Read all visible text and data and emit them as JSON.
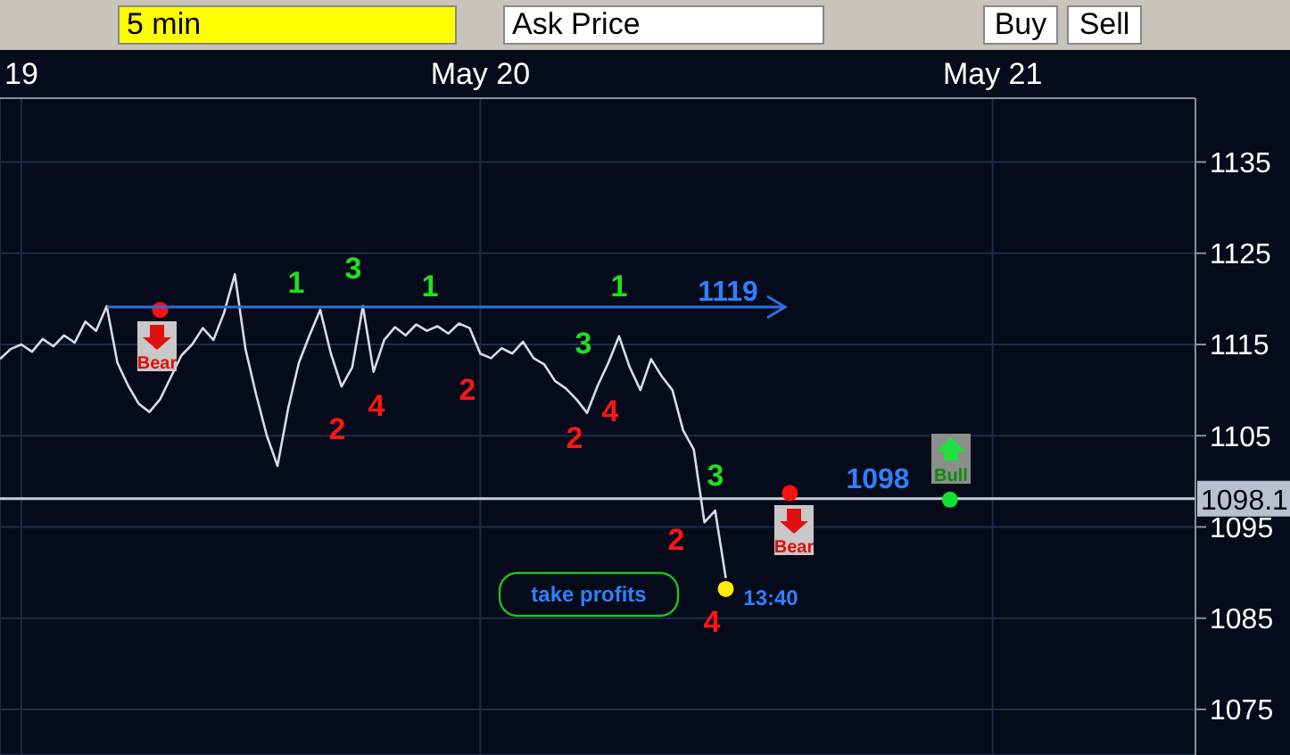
{
  "chart_data": {
    "type": "line",
    "categories": [
      null,
      null,
      "19",
      null,
      null,
      null,
      null,
      null,
      null,
      null,
      null,
      null,
      null,
      null,
      null,
      null,
      null,
      null,
      null,
      null,
      null,
      null,
      null,
      null,
      null,
      null,
      null,
      null,
      null,
      null,
      null,
      null,
      null,
      null,
      null,
      null,
      null,
      null,
      null,
      null,
      null,
      null,
      null,
      null,
      null,
      "May 20",
      null,
      null,
      null,
      null,
      null,
      null,
      null,
      null,
      null,
      null,
      null,
      null,
      null,
      null,
      null,
      null,
      null,
      null,
      null,
      null,
      null,
      null,
      null,
      null,
      null,
      null,
      null,
      null,
      null,
      null,
      null,
      null,
      null,
      null,
      null,
      null,
      null,
      null,
      null,
      null,
      null,
      null,
      null,
      null,
      null,
      null,
      null,
      "May 21",
      null,
      null,
      null,
      null,
      null,
      null,
      null,
      null,
      null,
      null,
      null,
      null,
      null,
      null,
      null,
      null,
      null,
      null,
      null
    ],
    "series": [
      {
        "color": "#d8dce8",
        "values": [
          1113.4,
          1114.5,
          1115.0,
          1114.2,
          1115.6,
          1114.8,
          1116.0,
          1115.2,
          1117.5,
          1116.5,
          1119.2,
          1113.0,
          1110.5,
          1108.5,
          1107.6,
          1109.0,
          1111.4,
          1113.8,
          1115.0,
          1116.8,
          1115.5,
          1118.5,
          1122.7,
          1114.5,
          1109.5,
          1105.0,
          1101.7,
          1108.0,
          1113.0,
          1116.0,
          1118.8,
          1114.0,
          1110.4,
          1112.5,
          1119.2,
          1112.0,
          1115.5,
          1116.9,
          1116.0,
          1117.2,
          1116.5,
          1117.0,
          1116.2,
          1117.3,
          1116.8,
          1114.0,
          1113.5,
          1114.6,
          1114.0,
          1115.3,
          1113.5,
          1112.8,
          1111.0,
          1110.2,
          1109.0,
          1107.5,
          1110.5,
          1113.0,
          1115.9,
          1112.5,
          1110.0,
          1113.4,
          1111.5,
          1110.0,
          1105.6,
          1103.5,
          1095.5,
          1096.8,
          1089.4,
          null,
          null,
          null,
          null,
          null,
          null,
          null,
          null,
          null,
          null,
          null,
          null,
          null,
          null,
          null,
          null,
          null,
          null,
          null,
          null,
          null,
          null,
          null,
          null,
          null,
          null,
          null,
          null,
          null,
          null,
          null,
          null,
          null,
          null,
          null,
          null,
          null,
          null,
          null,
          null,
          null,
          null,
          null,
          null
        ]
      },
      {
        "type": "scatter",
        "colors": [
          null,
          null,
          null,
          null,
          null,
          null,
          null,
          null,
          null,
          null,
          null,
          null,
          null,
          null,
          null,
          "#ff1010",
          null,
          null,
          null,
          null,
          null,
          null,
          null,
          null,
          null,
          null,
          null,
          null,
          null,
          null,
          null,
          null,
          null,
          null,
          null,
          null,
          null,
          null,
          null,
          null,
          null,
          null,
          null,
          null,
          null,
          null,
          null,
          null,
          null,
          null,
          null,
          null,
          null,
          null,
          null,
          null,
          null,
          null,
          null,
          null,
          null,
          null,
          null,
          null,
          null,
          null,
          null,
          null,
          "#ffee00",
          null,
          null,
          null,
          null,
          null,
          "#ff1010",
          null,
          null,
          null,
          null,
          null,
          null,
          null,
          null,
          null,
          null,
          null,
          null,
          null,
          null,
          "#10e030",
          null,
          null,
          null,
          null,
          null,
          null,
          null,
          null,
          null,
          null,
          null,
          null,
          null,
          null,
          null,
          null,
          null,
          null,
          null,
          null,
          null,
          null,
          null
        ],
        "values": [
          null,
          null,
          null,
          null,
          null,
          null,
          null,
          null,
          null,
          null,
          null,
          null,
          null,
          null,
          null,
          1118.8,
          null,
          null,
          null,
          null,
          null,
          null,
          null,
          null,
          null,
          null,
          null,
          null,
          null,
          null,
          null,
          null,
          null,
          null,
          null,
          null,
          null,
          null,
          null,
          null,
          null,
          null,
          null,
          null,
          null,
          null,
          null,
          null,
          null,
          null,
          null,
          null,
          null,
          null,
          null,
          null,
          null,
          null,
          null,
          null,
          null,
          null,
          null,
          null,
          null,
          null,
          null,
          null,
          1088.2,
          null,
          null,
          null,
          null,
          null,
          1098.7,
          null,
          null,
          null,
          null,
          null,
          null,
          null,
          null,
          null,
          null,
          null,
          null,
          null,
          null,
          1098.0,
          null,
          null,
          null,
          null,
          null,
          null,
          null,
          null,
          null,
          null,
          null,
          null,
          null,
          null,
          null,
          null,
          null,
          null,
          null,
          null,
          null,
          null,
          null
        ]
      }
    ],
    "ylim": [
      1070,
      1142
    ],
    "yticks": [
      1075,
      1085,
      1095,
      1105,
      1115,
      1125,
      1135
    ],
    "grid": true,
    "ref_lines": [
      {
        "axis": "y",
        "value": 1098.1,
        "label": "1098.1",
        "color": "#c8cede"
      }
    ],
    "annotations": [
      "5 min",
      "Ask Price",
      "Buy",
      "Sell",
      "1119",
      "1098",
      "13:40",
      "take profits",
      "Bear",
      "Bear",
      "Bull",
      "1",
      "3",
      "1",
      "1",
      "3",
      "3",
      "2",
      "4",
      "2",
      "2",
      "4",
      "2",
      "4"
    ]
  }
}
